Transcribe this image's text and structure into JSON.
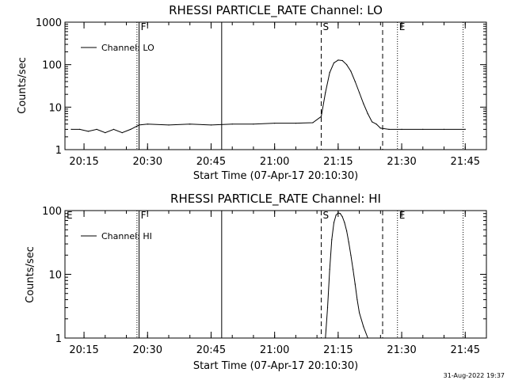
{
  "chart_data": [
    {
      "type": "line",
      "title": "RHESSI PARTICLE_RATE Channel: LO",
      "xlabel": "Start Time (07-Apr-17 20:10:30)",
      "ylabel": "Counts/sec",
      "yscale": "log",
      "ylim": [
        1,
        1000
      ],
      "y_ticks": [
        "1",
        "10",
        "100",
        "1000"
      ],
      "xlim": [
        "20:10:30",
        "21:50:00"
      ],
      "x_ticks": [
        "20:15",
        "20:30",
        "20:45",
        "21:00",
        "21:15",
        "21:30",
        "21:45"
      ],
      "legend": {
        "position": "top-left",
        "entries": [
          "Channel: LO"
        ]
      },
      "markers": [
        {
          "label": "F",
          "time": "20:28:00",
          "style": "solid"
        },
        {
          "label": "",
          "time": "20:47:30",
          "style": "solid"
        },
        {
          "label": "S",
          "time": "21:11:00",
          "style": "dashed"
        },
        {
          "label": "",
          "time": "21:25:30",
          "style": "dashed"
        },
        {
          "label": "E",
          "time": "21:29:00",
          "style": "dotted"
        },
        {
          "label": "",
          "time": "20:27:30",
          "style": "dotted"
        },
        {
          "label": "",
          "time": "21:44:30",
          "style": "dotted"
        }
      ],
      "series": [
        {
          "name": "Channel: LO",
          "x": [
            "20:12:00",
            "20:14:00",
            "20:16:00",
            "20:18:00",
            "20:20:00",
            "20:22:00",
            "20:24:00",
            "20:26:00",
            "20:28:00",
            "20:30:00",
            "20:35:00",
            "20:40:00",
            "20:45:00",
            "20:50:00",
            "20:55:00",
            "21:00:00",
            "21:05:00",
            "21:09:00",
            "21:11:00",
            "21:12:00",
            "21:13:00",
            "21:14:00",
            "21:15:00",
            "21:16:00",
            "21:17:00",
            "21:18:00",
            "21:19:00",
            "21:20:00",
            "21:21:00",
            "21:22:00",
            "21:23:00",
            "21:24:00",
            "21:25:00",
            "21:27:00",
            "21:30:00",
            "21:35:00",
            "21:40:00",
            "21:45:00"
          ],
          "values": [
            3.0,
            3.0,
            2.7,
            3.0,
            2.5,
            3.0,
            2.5,
            3.0,
            3.8,
            4.0,
            3.8,
            4.0,
            3.8,
            4.0,
            4.0,
            4.2,
            4.2,
            4.3,
            6,
            22,
            65,
            110,
            128,
            125,
            100,
            70,
            40,
            22,
            12,
            7,
            4.5,
            4.0,
            3.2,
            3.0,
            3.0,
            3.0,
            3.0,
            3.0
          ]
        }
      ]
    },
    {
      "type": "line",
      "title": "RHESSI PARTICLE_RATE Channel: HI",
      "xlabel": "Start Time (07-Apr-17 20:10:30)",
      "ylabel": "Counts/sec",
      "yscale": "log",
      "ylim": [
        1,
        100
      ],
      "y_ticks": [
        "1",
        "10",
        "100"
      ],
      "xlim": [
        "20:10:30",
        "21:50:00"
      ],
      "x_ticks": [
        "20:15",
        "20:30",
        "20:45",
        "21:00",
        "21:15",
        "21:30",
        "21:45"
      ],
      "legend": {
        "position": "top-left",
        "entries": [
          "Channel: HI"
        ]
      },
      "markers": [
        {
          "label": "E",
          "time": "20:10:30",
          "style": "solid"
        },
        {
          "label": "F",
          "time": "20:28:00",
          "style": "solid"
        },
        {
          "label": "",
          "time": "20:47:30",
          "style": "solid"
        },
        {
          "label": "S",
          "time": "21:11:00",
          "style": "dashed"
        },
        {
          "label": "",
          "time": "21:25:30",
          "style": "dashed"
        },
        {
          "label": "E",
          "time": "21:29:00",
          "style": "dotted"
        },
        {
          "label": "",
          "time": "20:27:30",
          "style": "dotted"
        },
        {
          "label": "",
          "time": "21:44:30",
          "style": "dotted"
        }
      ],
      "series": [
        {
          "name": "Channel: HI",
          "x": [
            "21:12:00",
            "21:12:30",
            "21:13:00",
            "21:13:30",
            "21:14:00",
            "21:14:30",
            "21:15:00",
            "21:15:30",
            "21:16:00",
            "21:16:30",
            "21:17:00",
            "21:17:30",
            "21:18:00",
            "21:18:30",
            "21:19:00",
            "21:19:30",
            "21:20:00",
            "21:21:00",
            "21:22:00"
          ],
          "values": [
            1,
            3,
            12,
            35,
            65,
            85,
            92,
            90,
            80,
            65,
            48,
            32,
            20,
            12,
            7,
            4,
            2.5,
            1.5,
            1
          ]
        }
      ]
    }
  ],
  "footer": {
    "timestamp": "31-Aug-2022 19:37"
  }
}
